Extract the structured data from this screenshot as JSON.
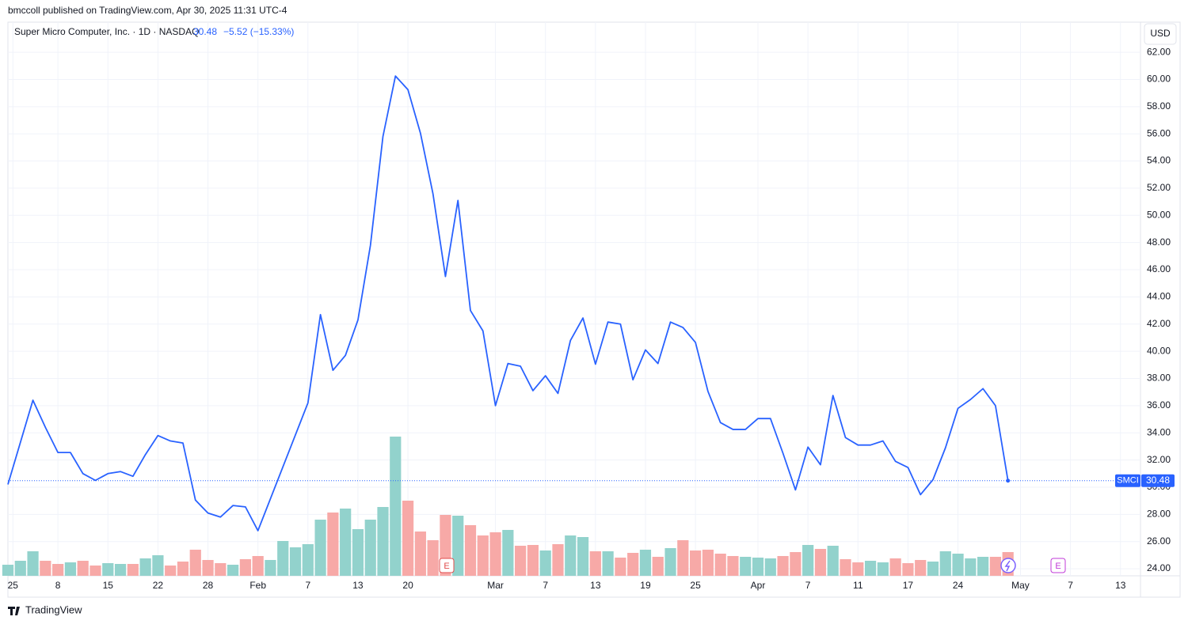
{
  "header": {
    "publisher": "bmccoll published on TradingView.com, Apr 30, 2025 11:31 UTC-4"
  },
  "legend": {
    "symbol": "Super Micro Computer, Inc. · 1D · NASDAQ",
    "change": "−5.52 (−15.33%)"
  },
  "currency": "USD",
  "events": [
    "E",
    "E"
  ],
  "footer": "TradingView",
  "chart_data": {
    "type": "line",
    "series": [
      {
        "name": "SMCI",
        "color": "#2962ff",
        "values": [
          30.2,
          33.3,
          36.4,
          34.4,
          32.55,
          32.55,
          31.0,
          30.5,
          31.0,
          31.15,
          30.8,
          32.4,
          33.8,
          33.4,
          33.25,
          29.05,
          28.1,
          27.8,
          28.65,
          28.55,
          26.8,
          29.15,
          31.5,
          33.85,
          36.2,
          42.7,
          38.6,
          39.7,
          42.3,
          47.8,
          55.8,
          60.25,
          59.25,
          56.05,
          51.6,
          45.5,
          51.1,
          43.0,
          41.5,
          36.0,
          39.1,
          38.9,
          37.1,
          38.2,
          36.9,
          40.8,
          42.45,
          39.05,
          42.15,
          42.0,
          37.9,
          40.1,
          39.1,
          42.15,
          41.75,
          40.65,
          37.05,
          34.75,
          34.25,
          34.25,
          35.05,
          35.05,
          32.5,
          29.8,
          32.95,
          31.65,
          36.75,
          33.65,
          33.1,
          33.1,
          33.4,
          31.9,
          31.45,
          29.45,
          30.55,
          32.9,
          35.8,
          36.45,
          37.25,
          36.0,
          30.48
        ]
      }
    ],
    "volume": {
      "axis": "y2",
      "up_color": "#92d2cc",
      "down_color": "#f7a9a7",
      "values": [
        7,
        9.5,
        15.5,
        9.5,
        7.5,
        8.5,
        9.5,
        6.5,
        8,
        7.5,
        7.5,
        11,
        13,
        6.5,
        9,
        16.5,
        10,
        8,
        7,
        10.5,
        12.5,
        10,
        22,
        18,
        20,
        35.5,
        40,
        42.5,
        29.5,
        35.5,
        43.5,
        88,
        47.5,
        28,
        22.5,
        38.5,
        38,
        32,
        25.5,
        27.5,
        29,
        19,
        19.5,
        16,
        20,
        25.5,
        24.5,
        15.5,
        15.5,
        11.5,
        14.5,
        16.5,
        12,
        17.5,
        22.5,
        16,
        16.5,
        14,
        12.5,
        12,
        11.5,
        11,
        12.5,
        15,
        19.5,
        17,
        19,
        10.5,
        8.5,
        9.5,
        8.5,
        11,
        8,
        10,
        9,
        15.5,
        14,
        11,
        12,
        12,
        15
      ]
    },
    "xlim": [
      0,
      90.6
    ],
    "xticks": [
      {
        "value": 0.4,
        "label": "25"
      },
      {
        "value": 4,
        "label": "8"
      },
      {
        "value": 8,
        "label": "15"
      },
      {
        "value": 12,
        "label": "22"
      },
      {
        "value": 16,
        "label": "28"
      },
      {
        "value": 20,
        "label": "Feb"
      },
      {
        "value": 24,
        "label": "7"
      },
      {
        "value": 28,
        "label": "13"
      },
      {
        "value": 32,
        "label": "20"
      },
      {
        "value": 39,
        "label": "Mar"
      },
      {
        "value": 43,
        "label": "7"
      },
      {
        "value": 47,
        "label": "13"
      },
      {
        "value": 51,
        "label": "19"
      },
      {
        "value": 55,
        "label": "25"
      },
      {
        "value": 60,
        "label": "Apr"
      },
      {
        "value": 64,
        "label": "7"
      },
      {
        "value": 68,
        "label": "11"
      },
      {
        "value": 72,
        "label": "17"
      },
      {
        "value": 76,
        "label": "24"
      },
      {
        "value": 81,
        "label": "May"
      },
      {
        "value": 85,
        "label": "7"
      },
      {
        "value": 89,
        "label": "13"
      }
    ],
    "ylim": [
      23.48,
      64.1
    ],
    "yticks": [
      {
        "value": 24,
        "label": "24.00"
      },
      {
        "value": 26,
        "label": "26.00"
      },
      {
        "value": 28,
        "label": "28.00"
      },
      {
        "value": 30,
        "label": "30.00"
      },
      {
        "value": 32,
        "label": "32.00"
      },
      {
        "value": 34,
        "label": "34.00"
      },
      {
        "value": 36,
        "label": "36.00"
      },
      {
        "value": 38,
        "label": "38.00"
      },
      {
        "value": 40,
        "label": "40.00"
      },
      {
        "value": 42,
        "label": "42.00"
      },
      {
        "value": 44,
        "label": "44.00"
      },
      {
        "value": 46,
        "label": "46.00"
      },
      {
        "value": 48,
        "label": "48.00"
      },
      {
        "value": 50,
        "label": "50.00"
      },
      {
        "value": 52,
        "label": "52.00"
      },
      {
        "value": 54,
        "label": "54.00"
      },
      {
        "value": 56,
        "label": "56.00"
      },
      {
        "value": 58,
        "label": "58.00"
      },
      {
        "value": 60,
        "label": "60.00"
      },
      {
        "value": 62,
        "label": "62.00"
      }
    ],
    "y2lim": [
      0,
      349
    ],
    "grid": true
  }
}
